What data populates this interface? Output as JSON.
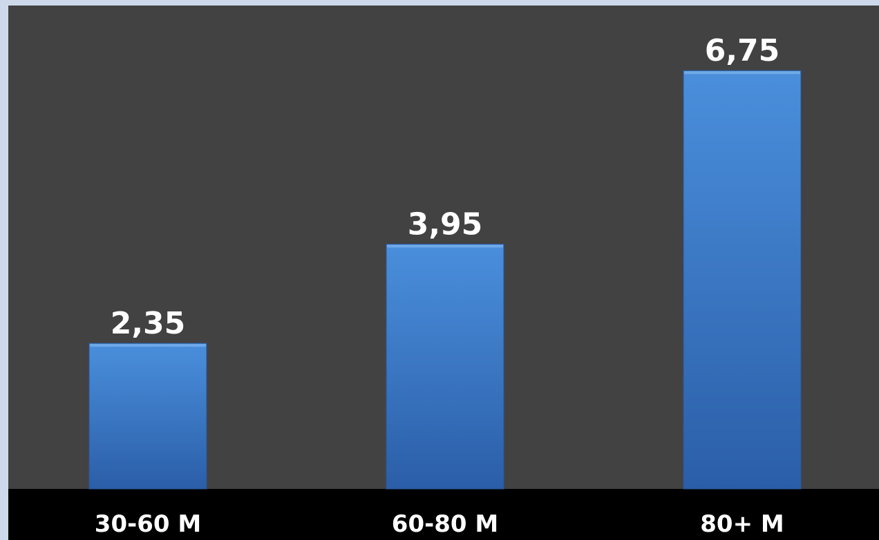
{
  "chart_data": {
    "type": "bar",
    "categories": [
      "30-60 M",
      "60-80 M",
      "80+ M"
    ],
    "values": [
      2.35,
      3.95,
      6.75
    ],
    "value_labels": [
      "2,35",
      "3,95",
      "6,75"
    ],
    "title": "",
    "xlabel": "",
    "ylabel": "",
    "ylim": [
      0,
      7.8
    ],
    "grid": false,
    "legend": "none",
    "colors": {
      "bar_top": "#4a8fdc",
      "bar_bottom": "#2b5ea8",
      "plot_background": "#424242",
      "axis_band": "#000000",
      "text": "#ffffff",
      "page_background": "#cdd9ea"
    }
  }
}
